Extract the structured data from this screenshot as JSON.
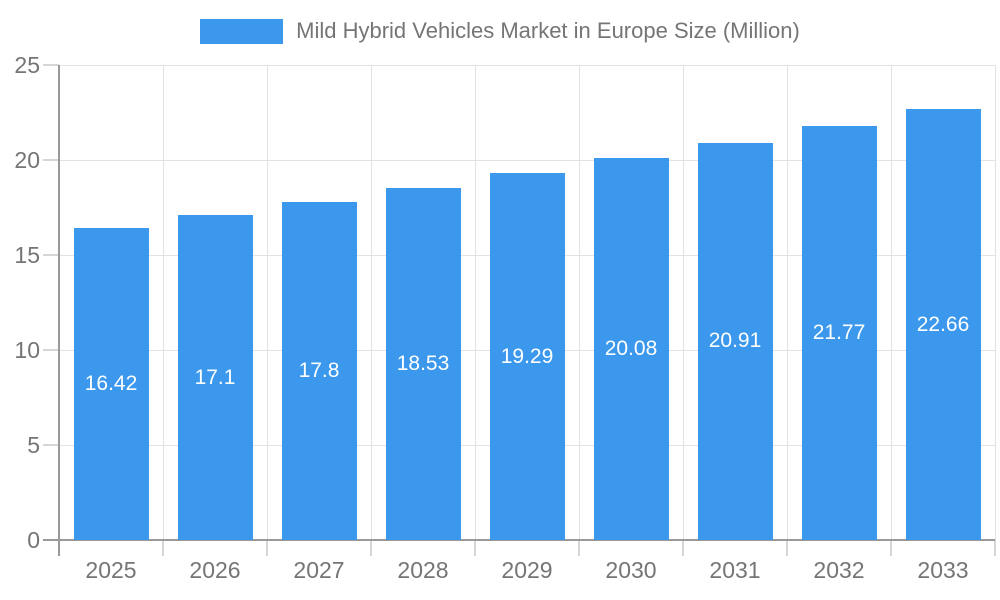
{
  "legend": {
    "label": "Mild Hybrid Vehicles Market in Europe Size (Million)"
  },
  "colors": {
    "bar": "#3B98EC",
    "axis": "#999999",
    "grid": "#E2E2E2",
    "tick": "#D6D6D6",
    "axis_label": "#757575",
    "value_label": "#FFFFFF",
    "background": "#FFFFFF"
  },
  "chart_data": {
    "type": "bar",
    "title": "",
    "legend_label": "Mild Hybrid Vehicles Market in Europe Size (Million)",
    "legend_position": "top",
    "categories": [
      "2025",
      "2026",
      "2027",
      "2028",
      "2029",
      "2030",
      "2031",
      "2032",
      "2033"
    ],
    "values": [
      16.42,
      17.1,
      17.8,
      18.53,
      19.29,
      20.08,
      20.91,
      21.77,
      22.66
    ],
    "value_labels": [
      "16.42",
      "17.1",
      "17.8",
      "18.53",
      "19.29",
      "20.08",
      "20.91",
      "21.77",
      "22.66"
    ],
    "xlabel": "",
    "ylabel": "",
    "ylim": [
      0,
      25
    ],
    "yticks": [
      0,
      5,
      10,
      15,
      20,
      25
    ],
    "ytick_labels": [
      "0",
      "5",
      "10",
      "15",
      "20",
      "25"
    ],
    "grid": "horizontal gridlines at yticks, vertical gridlines at category boundaries",
    "value_label_position": "centered inside bar"
  }
}
